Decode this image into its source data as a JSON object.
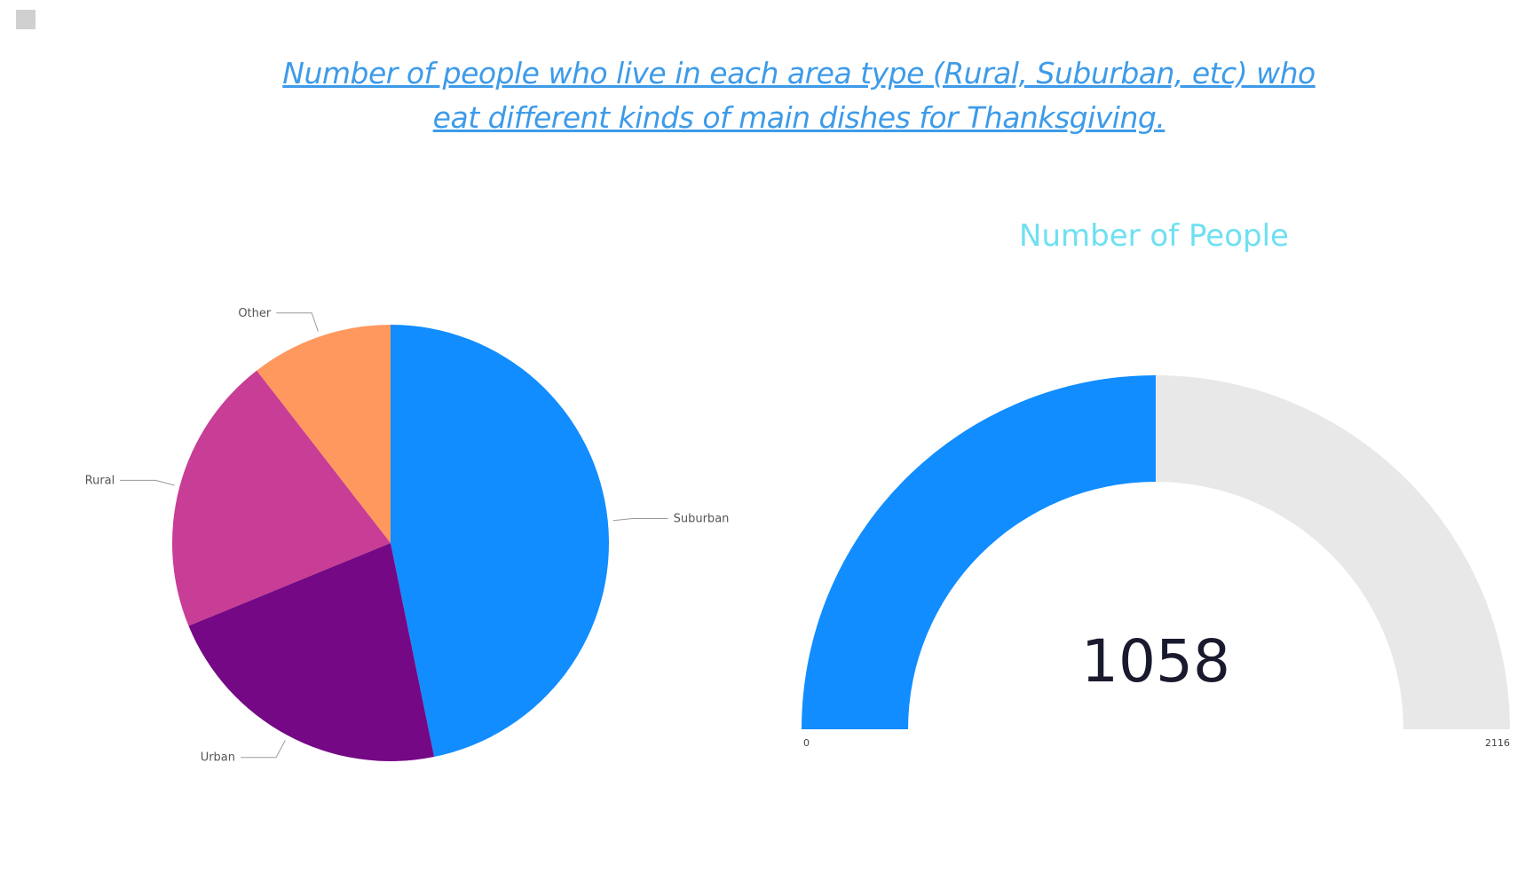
{
  "title": "Number of people who live in each area type (Rural, Suburban, etc) who eat different kinds of main dishes for Thanksgiving.",
  "chart_data": [
    {
      "type": "pie",
      "categories": [
        "Suburban",
        "Urban",
        "Rural",
        "Other"
      ],
      "values": [
        46.8,
        22.0,
        20.7,
        10.5
      ],
      "colors": [
        "#118dff",
        "#750985",
        "#c83d95",
        "#ff985e"
      ],
      "legend": "labels-outside"
    },
    {
      "type": "gauge",
      "title": "Number of People",
      "value": 1058,
      "min": 0,
      "max": 2116,
      "min_label": "0",
      "max_label": "2116",
      "value_label": "1058",
      "colors": {
        "fill": "#118dff",
        "track": "#e8e8e8"
      }
    }
  ]
}
